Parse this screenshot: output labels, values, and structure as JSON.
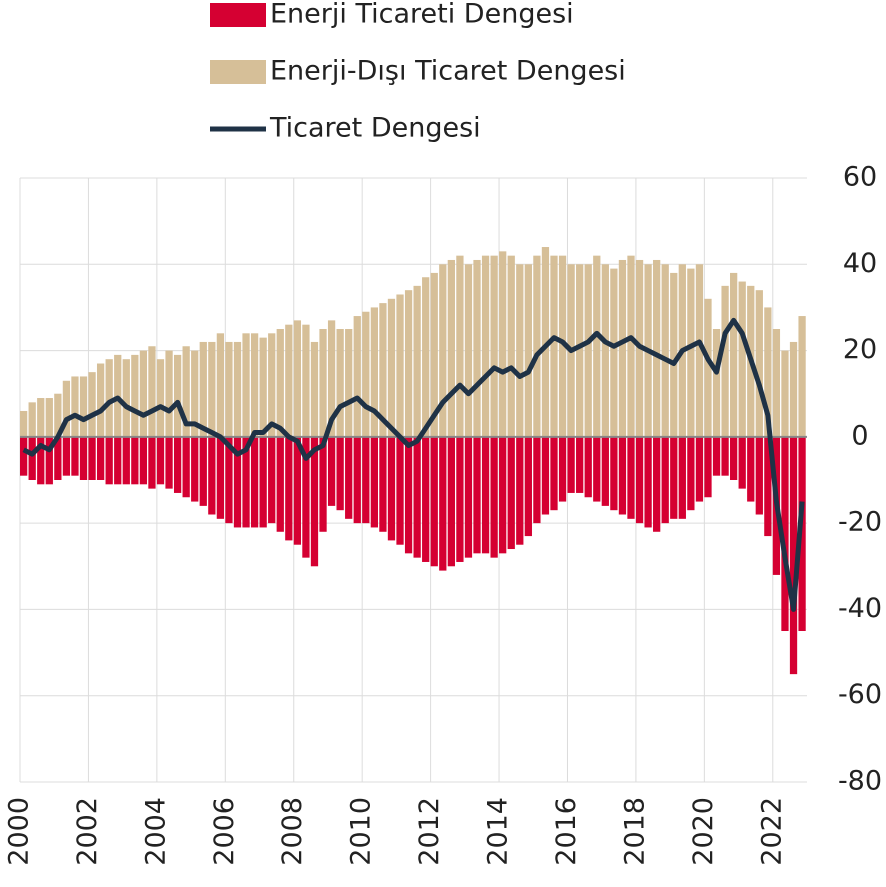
{
  "chart_data": {
    "type": "bar_line",
    "x": [
      2000,
      2000.25,
      2000.5,
      2000.75,
      2001,
      2001.25,
      2001.5,
      2001.75,
      2002,
      2002.25,
      2002.5,
      2002.75,
      2003,
      2003.25,
      2003.5,
      2003.75,
      2004,
      2004.25,
      2004.5,
      2004.75,
      2005,
      2005.25,
      2005.5,
      2005.75,
      2006,
      2006.25,
      2006.5,
      2006.75,
      2007,
      2007.25,
      2007.5,
      2007.75,
      2008,
      2008.25,
      2008.5,
      2008.75,
      2009,
      2009.25,
      2009.5,
      2009.75,
      2010,
      2010.25,
      2010.5,
      2010.75,
      2011,
      2011.25,
      2011.5,
      2011.75,
      2012,
      2012.25,
      2012.5,
      2012.75,
      2013,
      2013.25,
      2013.5,
      2013.75,
      2014,
      2014.25,
      2014.5,
      2014.75,
      2015,
      2015.25,
      2015.5,
      2015.75,
      2016,
      2016.25,
      2016.5,
      2016.75,
      2017,
      2017.25,
      2017.5,
      2017.75,
      2018,
      2018.25,
      2018.5,
      2018.75,
      2019,
      2019.25,
      2019.5,
      2019.75,
      2020,
      2020.25,
      2020.5,
      2020.75,
      2021,
      2021.25,
      2021.5,
      2021.75,
      2022,
      2022.25,
      2022.5,
      2022.75
    ],
    "series": [
      {
        "name": "Enerji Ticareti Dengesi",
        "color": "#d50032",
        "kind": "bar",
        "values": [
          -9,
          -10,
          -11,
          -11,
          -10,
          -9,
          -9,
          -10,
          -10,
          -10,
          -11,
          -11,
          -11,
          -11,
          -11,
          -12,
          -11,
          -12,
          -13,
          -14,
          -15,
          -16,
          -18,
          -19,
          -20,
          -21,
          -21,
          -21,
          -21,
          -20,
          -22,
          -24,
          -25,
          -28,
          -30,
          -22,
          -16,
          -17,
          -19,
          -20,
          -20,
          -21,
          -22,
          -24,
          -25,
          -27,
          -28,
          -29,
          -30,
          -31,
          -30,
          -29,
          -28,
          -27,
          -27,
          -28,
          -27,
          -26,
          -25,
          -23,
          -20,
          -18,
          -17,
          -15,
          -13,
          -13,
          -14,
          -15,
          -16,
          -17,
          -18,
          -19,
          -20,
          -21,
          -22,
          -20,
          -19,
          -19,
          -17,
          -15,
          -14,
          -9,
          -9,
          -10,
          -12,
          -15,
          -18,
          -23,
          -32,
          -45,
          -55,
          -45
        ]
      },
      {
        "name": "Enerji-Dışı Ticaret Dengesi",
        "color": "#d6bf98",
        "kind": "bar",
        "values": [
          6,
          8,
          9,
          9,
          10,
          13,
          14,
          14,
          15,
          17,
          18,
          19,
          18,
          19,
          20,
          21,
          18,
          20,
          19,
          21,
          20,
          22,
          22,
          24,
          22,
          22,
          24,
          24,
          23,
          24,
          25,
          26,
          27,
          26,
          22,
          25,
          27,
          25,
          25,
          28,
          29,
          30,
          31,
          32,
          33,
          34,
          35,
          37,
          38,
          40,
          41,
          42,
          40,
          41,
          42,
          42,
          43,
          42,
          40,
          40,
          42,
          44,
          42,
          42,
          40,
          40,
          40,
          42,
          40,
          39,
          41,
          42,
          41,
          40,
          41,
          40,
          38,
          40,
          39,
          40,
          32,
          25,
          35,
          38,
          36,
          35,
          34,
          30,
          25,
          20,
          22,
          28
        ]
      },
      {
        "name": "Ticaret Dengesi",
        "color": "#1f3246",
        "kind": "line",
        "values": [
          -3,
          -4,
          -2,
          -3,
          0,
          4,
          5,
          4,
          5,
          6,
          8,
          9,
          7,
          6,
          5,
          6,
          7,
          6,
          8,
          3,
          3,
          2,
          1,
          0,
          -2,
          -4,
          -3,
          1,
          1,
          3,
          2,
          0,
          -1,
          -5,
          -3,
          -2,
          4,
          7,
          8,
          9,
          7,
          6,
          4,
          2,
          0,
          -2,
          -1,
          2,
          5,
          8,
          10,
          12,
          10,
          12,
          14,
          16,
          15,
          16,
          14,
          15,
          19,
          21,
          23,
          22,
          20,
          21,
          22,
          24,
          22,
          21,
          22,
          23,
          21,
          20,
          19,
          18,
          17,
          20,
          21,
          22,
          18,
          15,
          24,
          27,
          24,
          18,
          12,
          5,
          -15,
          -28,
          -40,
          -15
        ]
      }
    ],
    "xlim": [
      2000,
      2023
    ],
    "xticks": [
      2000,
      2002,
      2004,
      2006,
      2008,
      2010,
      2012,
      2014,
      2016,
      2018,
      2020,
      2022
    ],
    "ylim": [
      -80,
      60
    ],
    "yticks": [
      -80,
      -60,
      -40,
      -20,
      0,
      20,
      40,
      60
    ],
    "grid": true,
    "legend": "top"
  }
}
